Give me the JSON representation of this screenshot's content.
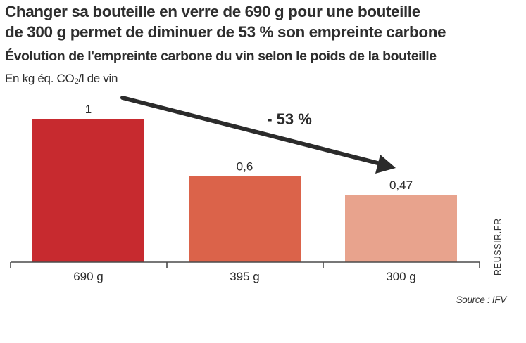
{
  "header": {
    "title_line1": "Changer sa bouteille en verre de 690 g pour une bouteille",
    "title_line2": "de 300 g permet de diminuer de 53 % son empreinte carbone",
    "subtitle": "Évolution de l'empreinte carbone du vin selon le poids de la bouteille",
    "unit_prefix": "En kg éq. CO",
    "unit_sub": "2",
    "unit_suffix": "/l de vin"
  },
  "annotation": {
    "label": "- 53 %",
    "arrow_color": "#2b2b2b"
  },
  "footer": {
    "source": "Source : IFV",
    "credit": "REUSSIR.FR"
  },
  "chart_data": {
    "type": "bar",
    "title": "Changer sa bouteille en verre de 690 g pour une bouteille de 300 g permet de diminuer de 53 % son empreinte carbone",
    "subtitle": "Évolution de l'empreinte carbone du vin selon le poids de la bouteille",
    "xlabel": "",
    "ylabel": "En kg éq. CO2/l de vin",
    "categories": [
      "690 g",
      "395 g",
      "300 g"
    ],
    "values": [
      1,
      0.6,
      0.47
    ],
    "value_labels": [
      "1",
      "0,6",
      "0,47"
    ],
    "colors": [
      "#c72a2f",
      "#db634a",
      "#e8a38d"
    ],
    "ylim": [
      0,
      1
    ],
    "grid": false,
    "legend": "none",
    "annotations": [
      {
        "text": "- 53 %",
        "type": "arrow",
        "from": "690 g",
        "to": "300 g"
      }
    ],
    "source": "Source : IFV"
  }
}
